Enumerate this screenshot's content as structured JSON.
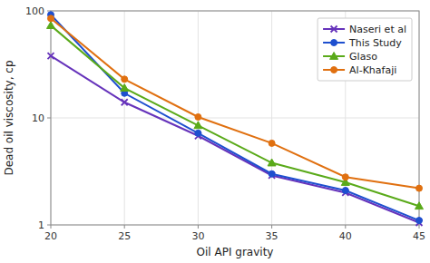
{
  "chart_data": {
    "type": "line",
    "x": [
      20,
      25,
      30,
      35,
      40,
      45
    ],
    "series": [
      {
        "name": "Naseri et al",
        "color": "#6633bb",
        "marker": "x",
        "values": [
          38,
          14,
          6.8,
          2.9,
          2.0,
          1.05
        ]
      },
      {
        "name": "This Study",
        "color": "#1e4fcf",
        "marker": "circle",
        "values": [
          92,
          17,
          7.2,
          3.0,
          2.1,
          1.1
        ]
      },
      {
        "name": "Glaso",
        "color": "#5aaa1a",
        "marker": "triangle",
        "values": [
          73,
          19,
          8.5,
          3.8,
          2.5,
          1.5
        ]
      },
      {
        "name": "Al-Khafaji",
        "color": "#e07010",
        "marker": "circle",
        "values": [
          85,
          23,
          10.2,
          5.8,
          2.8,
          2.2
        ]
      }
    ],
    "x_label": "Oil API gravity",
    "y_label": "Dead oil viscosity, cp",
    "xlim": [
      20,
      45
    ],
    "xticks": [
      20,
      25,
      30,
      35,
      40,
      45
    ],
    "ylim": [
      1,
      100
    ],
    "yticks": [
      1,
      10,
      100
    ],
    "log": "y",
    "grid": true,
    "legend": "upper right"
  }
}
